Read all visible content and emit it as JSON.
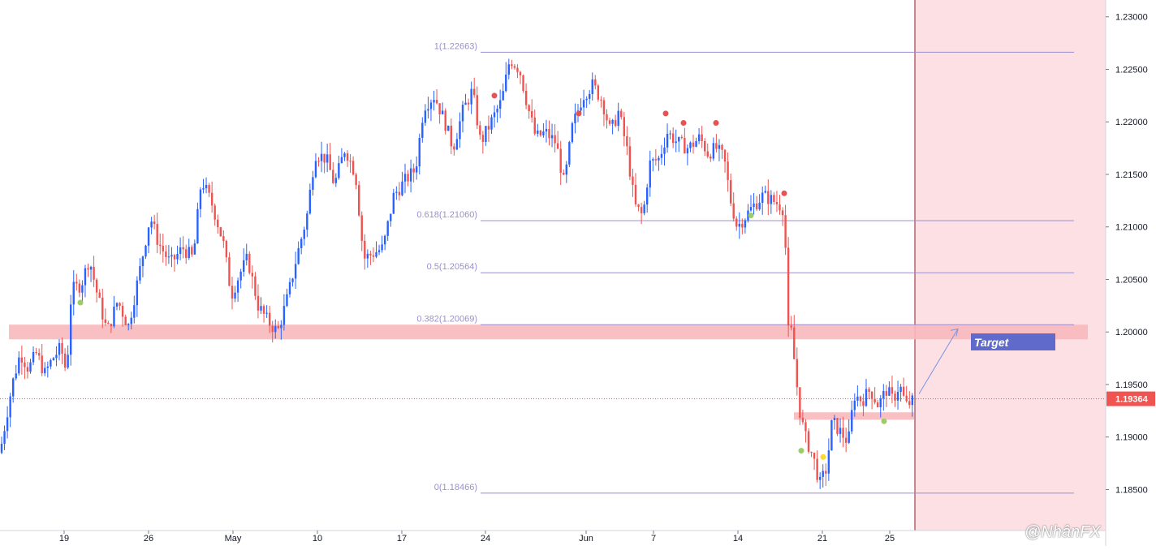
{
  "chart_data": {
    "type": "candlestick",
    "y_axis": {
      "position": "right",
      "min": 1.1811,
      "max": 1.2316,
      "ticks": [
        "1.18500",
        "1.19000",
        "1.19500",
        "1.20000",
        "1.20500",
        "1.21000",
        "1.21500",
        "1.22000",
        "1.22500",
        "1.23000"
      ]
    },
    "x_axis": {
      "ticks": [
        "19",
        "26",
        "May",
        "10",
        "17",
        "24",
        "Jun",
        "7",
        "14",
        "21",
        "25"
      ]
    },
    "current_price": {
      "label": "1.19364",
      "value": 1.19364,
      "color": "#f05350"
    },
    "fibonacci": [
      {
        "label": "1(1.22663)",
        "value": 1.22663
      },
      {
        "label": "0.618(1.21060)",
        "value": 1.2106
      },
      {
        "label": "0.5(1.20564)",
        "value": 1.20564
      },
      {
        "label": "0.382(1.20069)",
        "value": 1.20069
      },
      {
        "label": "0(1.18466)",
        "value": 1.18466
      }
    ],
    "zones": [
      {
        "name": "resistance",
        "from": 1.1993,
        "to": 1.2007
      },
      {
        "name": "support",
        "from": 1.1918,
        "to": 1.1922
      }
    ],
    "annotations": {
      "target_label": "Target",
      "arrow_from": 1.1941,
      "arrow_to": 1.2003
    },
    "colors": {
      "up": "#2962ff",
      "down": "#ef5350",
      "fib": "#9b8fd1",
      "zone": "#f8b9bd",
      "projection": "#fde0e4",
      "target_box": "#5f6acb",
      "dot_red": "#e55353",
      "dot_green": "#9ccc65",
      "dot_yellow": "#fdd835"
    },
    "path_anchors": [
      [
        0,
        1.1885
      ],
      [
        8,
        1.192
      ],
      [
        15,
        1.195
      ],
      [
        25,
        1.198
      ],
      [
        35,
        1.1965
      ],
      [
        45,
        1.198
      ],
      [
        55,
        1.196
      ],
      [
        65,
        1.1975
      ],
      [
        75,
        1.1985
      ],
      [
        82,
        1.196
      ],
      [
        88,
        1.204
      ],
      [
        100,
        1.2045
      ],
      [
        110,
        1.207
      ],
      [
        120,
        1.2035
      ],
      [
        132,
        1.2
      ],
      [
        145,
        1.203
      ],
      [
        158,
        1.2005
      ],
      [
        170,
        1.205
      ],
      [
        185,
        1.211
      ],
      [
        195,
        1.2085
      ],
      [
        210,
        1.2065
      ],
      [
        225,
        1.208
      ],
      [
        238,
        1.207
      ],
      [
        248,
        1.2145
      ],
      [
        262,
        1.212
      ],
      [
        275,
        1.2085
      ],
      [
        285,
        1.2035
      ],
      [
        295,
        1.2055
      ],
      [
        305,
        1.207
      ],
      [
        318,
        1.2025
      ],
      [
        330,
        1.201
      ],
      [
        342,
        1.2
      ],
      [
        355,
        1.2035
      ],
      [
        365,
        1.207
      ],
      [
        378,
        1.211
      ],
      [
        388,
        1.217
      ],
      [
        402,
        1.2165
      ],
      [
        412,
        1.214
      ],
      [
        425,
        1.2175
      ],
      [
        438,
        1.215
      ],
      [
        448,
        1.207
      ],
      [
        460,
        1.2075
      ],
      [
        472,
        1.208
      ],
      [
        485,
        1.213
      ],
      [
        500,
        1.2145
      ],
      [
        512,
        1.2155
      ],
      [
        522,
        1.2215
      ],
      [
        535,
        1.2225
      ],
      [
        548,
        1.22
      ],
      [
        558,
        1.2175
      ],
      [
        570,
        1.221
      ],
      [
        582,
        1.223
      ],
      [
        592,
        1.218
      ],
      [
        605,
        1.22
      ],
      [
        618,
        1.222
      ],
      [
        628,
        1.226
      ],
      [
        640,
        1.225
      ],
      [
        650,
        1.2215
      ],
      [
        660,
        1.2185
      ],
      [
        672,
        1.219
      ],
      [
        685,
        1.218
      ],
      [
        695,
        1.214
      ],
      [
        705,
        1.2195
      ],
      [
        718,
        1.2225
      ],
      [
        730,
        1.2235
      ],
      [
        742,
        1.222
      ],
      [
        752,
        1.219
      ],
      [
        762,
        1.221
      ],
      [
        772,
        1.2175
      ],
      [
        782,
        1.212
      ],
      [
        792,
        1.211
      ],
      [
        800,
        1.216
      ],
      [
        812,
        1.2165
      ],
      [
        822,
        1.219
      ],
      [
        835,
        1.218
      ],
      [
        848,
        1.2175
      ],
      [
        862,
        1.2185
      ],
      [
        872,
        1.217
      ],
      [
        882,
        1.2175
      ],
      [
        892,
        1.2165
      ],
      [
        900,
        1.2125
      ],
      [
        908,
        1.21
      ],
      [
        918,
        1.211
      ],
      [
        928,
        1.212
      ],
      [
        940,
        1.213
      ],
      [
        952,
        1.2125
      ],
      [
        962,
        1.212
      ],
      [
        967,
        1.2115
      ],
      [
        969,
        1.2
      ],
      [
        975,
        1.2
      ],
      [
        980,
        1.196
      ],
      [
        986,
        1.192
      ],
      [
        992,
        1.19
      ],
      [
        1002,
        1.188
      ],
      [
        1010,
        1.1855
      ],
      [
        1018,
        1.187
      ],
      [
        1025,
        1.1915
      ],
      [
        1035,
        1.1905
      ],
      [
        1045,
        1.1895
      ],
      [
        1052,
        1.194
      ],
      [
        1062,
        1.1935
      ],
      [
        1072,
        1.1945
      ],
      [
        1082,
        1.193
      ],
      [
        1092,
        1.1945
      ],
      [
        1100,
        1.1935
      ],
      [
        1108,
        1.195
      ],
      [
        1116,
        1.193
      ],
      [
        1126,
        1.1935
      ]
    ]
  },
  "overlays": {
    "watermark": "@NhânFX"
  }
}
